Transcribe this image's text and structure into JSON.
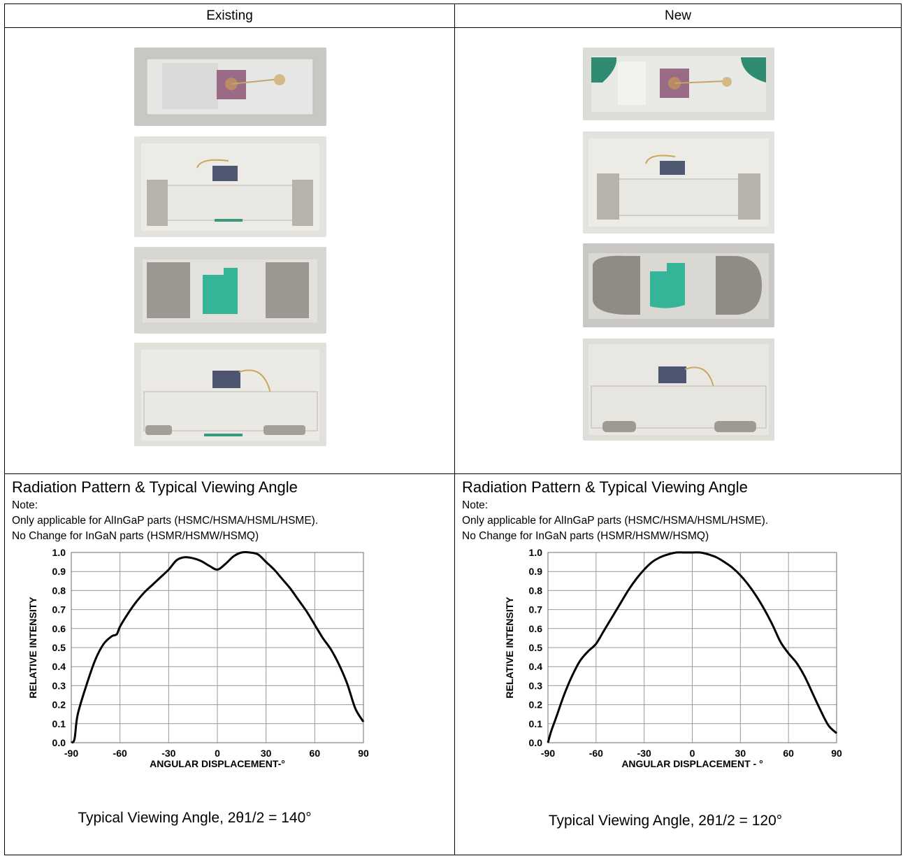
{
  "header": {
    "existing": "Existing",
    "new": "New"
  },
  "left": {
    "title": "Radiation Pattern & Typical Viewing Angle",
    "note_label": "Note:",
    "note_line1": "Only applicable for AlInGaP parts (HSMC/HSMA/HSML/HSME).",
    "note_line2": "No Change for InGaN parts (HSMR/HSMW/HSMQ)",
    "caption": "Typical Viewing Angle, 2θ1/2 = 140°"
  },
  "right": {
    "title": "Radiation Pattern & Typical Viewing Angle",
    "note_label": "Note:",
    "note_line1": "Only applicable for AlInGaP parts (HSMC/HSMA/HSML/HSME).",
    "note_line2": "No Change for InGaN parts (HSMR/HSMW/HSMQ)",
    "caption": "Typical Viewing Angle, 2θ1/2 = 120°"
  },
  "chart_data": [
    {
      "type": "line",
      "xlabel": "ANGULAR DISPLACEMENT-°",
      "ylabel": "RELATIVE INTENSITY",
      "xticks": [
        "-90",
        "-60",
        "-30",
        "0",
        "30",
        "60",
        "90"
      ],
      "yticks": [
        "0.0",
        "0.1",
        "0.2",
        "0.3",
        "0.4",
        "0.5",
        "0.6",
        "0.7",
        "0.8",
        "0.9",
        "1.0"
      ],
      "xlim": [
        -90,
        90
      ],
      "ylim": [
        0,
        1
      ],
      "grid": true,
      "x": [
        -90,
        -88,
        -86,
        -80,
        -75,
        -70,
        -65,
        -62,
        -60,
        -55,
        -50,
        -45,
        -40,
        -35,
        -30,
        -25,
        -20,
        -15,
        -10,
        -5,
        0,
        5,
        10,
        15,
        20,
        25,
        30,
        35,
        40,
        45,
        50,
        55,
        60,
        65,
        70,
        75,
        80,
        85,
        90
      ],
      "y": [
        0.0,
        0.02,
        0.15,
        0.32,
        0.44,
        0.52,
        0.56,
        0.57,
        0.61,
        0.68,
        0.74,
        0.79,
        0.83,
        0.87,
        0.91,
        0.96,
        0.975,
        0.97,
        0.955,
        0.93,
        0.91,
        0.94,
        0.98,
        1.0,
        1.0,
        0.99,
        0.95,
        0.91,
        0.86,
        0.81,
        0.75,
        0.69,
        0.62,
        0.55,
        0.49,
        0.41,
        0.31,
        0.18,
        0.11
      ]
    },
    {
      "type": "line",
      "xlabel": "ANGULAR DISPLACEMENT - °",
      "ylabel": "RELATIVE INTENSITY",
      "xticks": [
        "-90",
        "-60",
        "-30",
        "0",
        "30",
        "60",
        "90"
      ],
      "yticks": [
        "0.0",
        "0.1",
        "0.2",
        "0.3",
        "0.4",
        "0.5",
        "0.6",
        "0.7",
        "0.8",
        "0.9",
        "1.0"
      ],
      "xlim": [
        -90,
        90
      ],
      "ylim": [
        0,
        1
      ],
      "grid": true,
      "x": [
        -90,
        -88,
        -85,
        -80,
        -75,
        -70,
        -65,
        -60,
        -55,
        -50,
        -45,
        -40,
        -35,
        -30,
        -25,
        -20,
        -15,
        -10,
        -5,
        0,
        5,
        10,
        15,
        20,
        25,
        30,
        35,
        40,
        45,
        50,
        55,
        60,
        65,
        70,
        75,
        80,
        85,
        90
      ],
      "y": [
        0.0,
        0.06,
        0.13,
        0.25,
        0.35,
        0.43,
        0.48,
        0.52,
        0.59,
        0.66,
        0.73,
        0.8,
        0.86,
        0.91,
        0.95,
        0.975,
        0.99,
        1.0,
        1.0,
        1.0,
        1.0,
        0.99,
        0.975,
        0.95,
        0.92,
        0.88,
        0.83,
        0.77,
        0.7,
        0.62,
        0.53,
        0.47,
        0.42,
        0.35,
        0.26,
        0.17,
        0.09,
        0.05
      ]
    }
  ]
}
